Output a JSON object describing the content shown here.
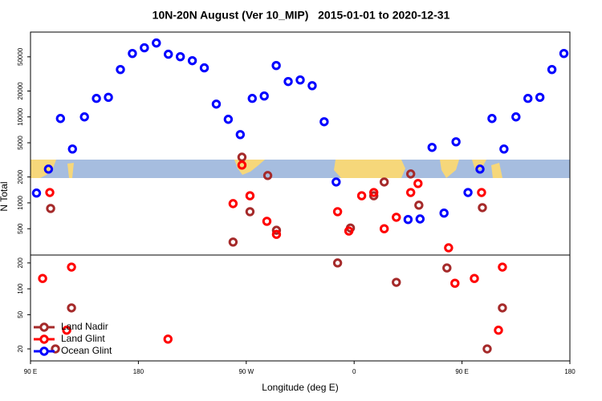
{
  "chart_data": {
    "type": "scatter",
    "title": "10N-20N August (Ver 10_MIP)   2015-01-01 to 2020-12-31",
    "x_label": "Longitude (deg E)",
    "y_label": "N Total",
    "log_y": true,
    "grid": false,
    "legend": "bottom-left",
    "xlim": [
      90,
      540
    ],
    "xticks": [
      {
        "value": 90,
        "label": "90 E"
      },
      180,
      {
        "value": 270,
        "label": "90 W"
      },
      {
        "value": 360,
        "label": "0"
      },
      {
        "value": 450,
        "label": "90 E"
      },
      {
        "value": 540,
        "label": "180"
      }
    ],
    "ylim": [
      14.5,
      97000
    ],
    "yticks": [
      20,
      50,
      100,
      200,
      500,
      1000,
      2000,
      5000,
      10000,
      20000,
      50000
    ],
    "series": [
      {
        "name": "Land Nadir",
        "color": "#a52a2a",
        "x": [
          106.8,
          110.8,
          124.2,
          259.0,
          266.4,
          273.1,
          287.9,
          295.2,
          346.2,
          356.9,
          376.4,
          385.1,
          395.2,
          407.2,
          414.0,
          437.4,
          467.0,
          471.0,
          483.7
        ],
        "values": [
          860,
          20,
          60,
          350,
          3400,
          790,
          2080,
          480,
          200,
          510,
          1210,
          1750,
          119,
          2170,
          940,
          175,
          880,
          20,
          60
        ]
      },
      {
        "name": "Land Glint",
        "color": "#ff0000",
        "x": [
          100.1,
          106.1,
          120.2,
          124.2,
          204.7,
          259.0,
          266.4,
          273.1,
          287.2,
          295.2,
          346.2,
          355.6,
          366.3,
          376.4,
          385.1,
          395.2,
          407.2,
          413.3,
          438.8,
          444.1,
          460.3,
          466.3,
          480.4,
          483.7
        ],
        "values": [
          132,
          1320,
          33,
          179,
          26,
          980,
          2750,
          1210,
          610,
          430,
          790,
          470,
          1210,
          1320,
          500,
          680,
          1320,
          1680,
          300,
          116,
          132,
          1320,
          33,
          179
        ]
      },
      {
        "name": "Ocean Glint",
        "color": "#0000ff",
        "x": [
          95,
          105,
          115,
          125,
          135,
          145,
          155,
          165,
          175,
          185,
          195,
          205,
          215,
          225,
          235,
          245,
          255,
          265,
          275,
          285,
          295,
          305,
          315,
          325,
          335,
          345,
          405,
          415,
          425,
          435,
          445,
          455,
          465,
          475,
          485,
          495,
          505,
          515,
          525,
          535
        ],
        "values": [
          1300,
          2470,
          9580,
          4230,
          10000,
          16400,
          16900,
          35600,
          54700,
          63700,
          72400,
          53600,
          50200,
          45100,
          37200,
          14100,
          9380,
          6230,
          16400,
          17500,
          39600,
          25800,
          26900,
          23100,
          8790,
          1750,
          640,
          650,
          4420,
          760,
          5130,
          1320,
          2470,
          9580,
          4230,
          10000,
          16400,
          16900,
          35600,
          54700
        ]
      }
    ]
  }
}
